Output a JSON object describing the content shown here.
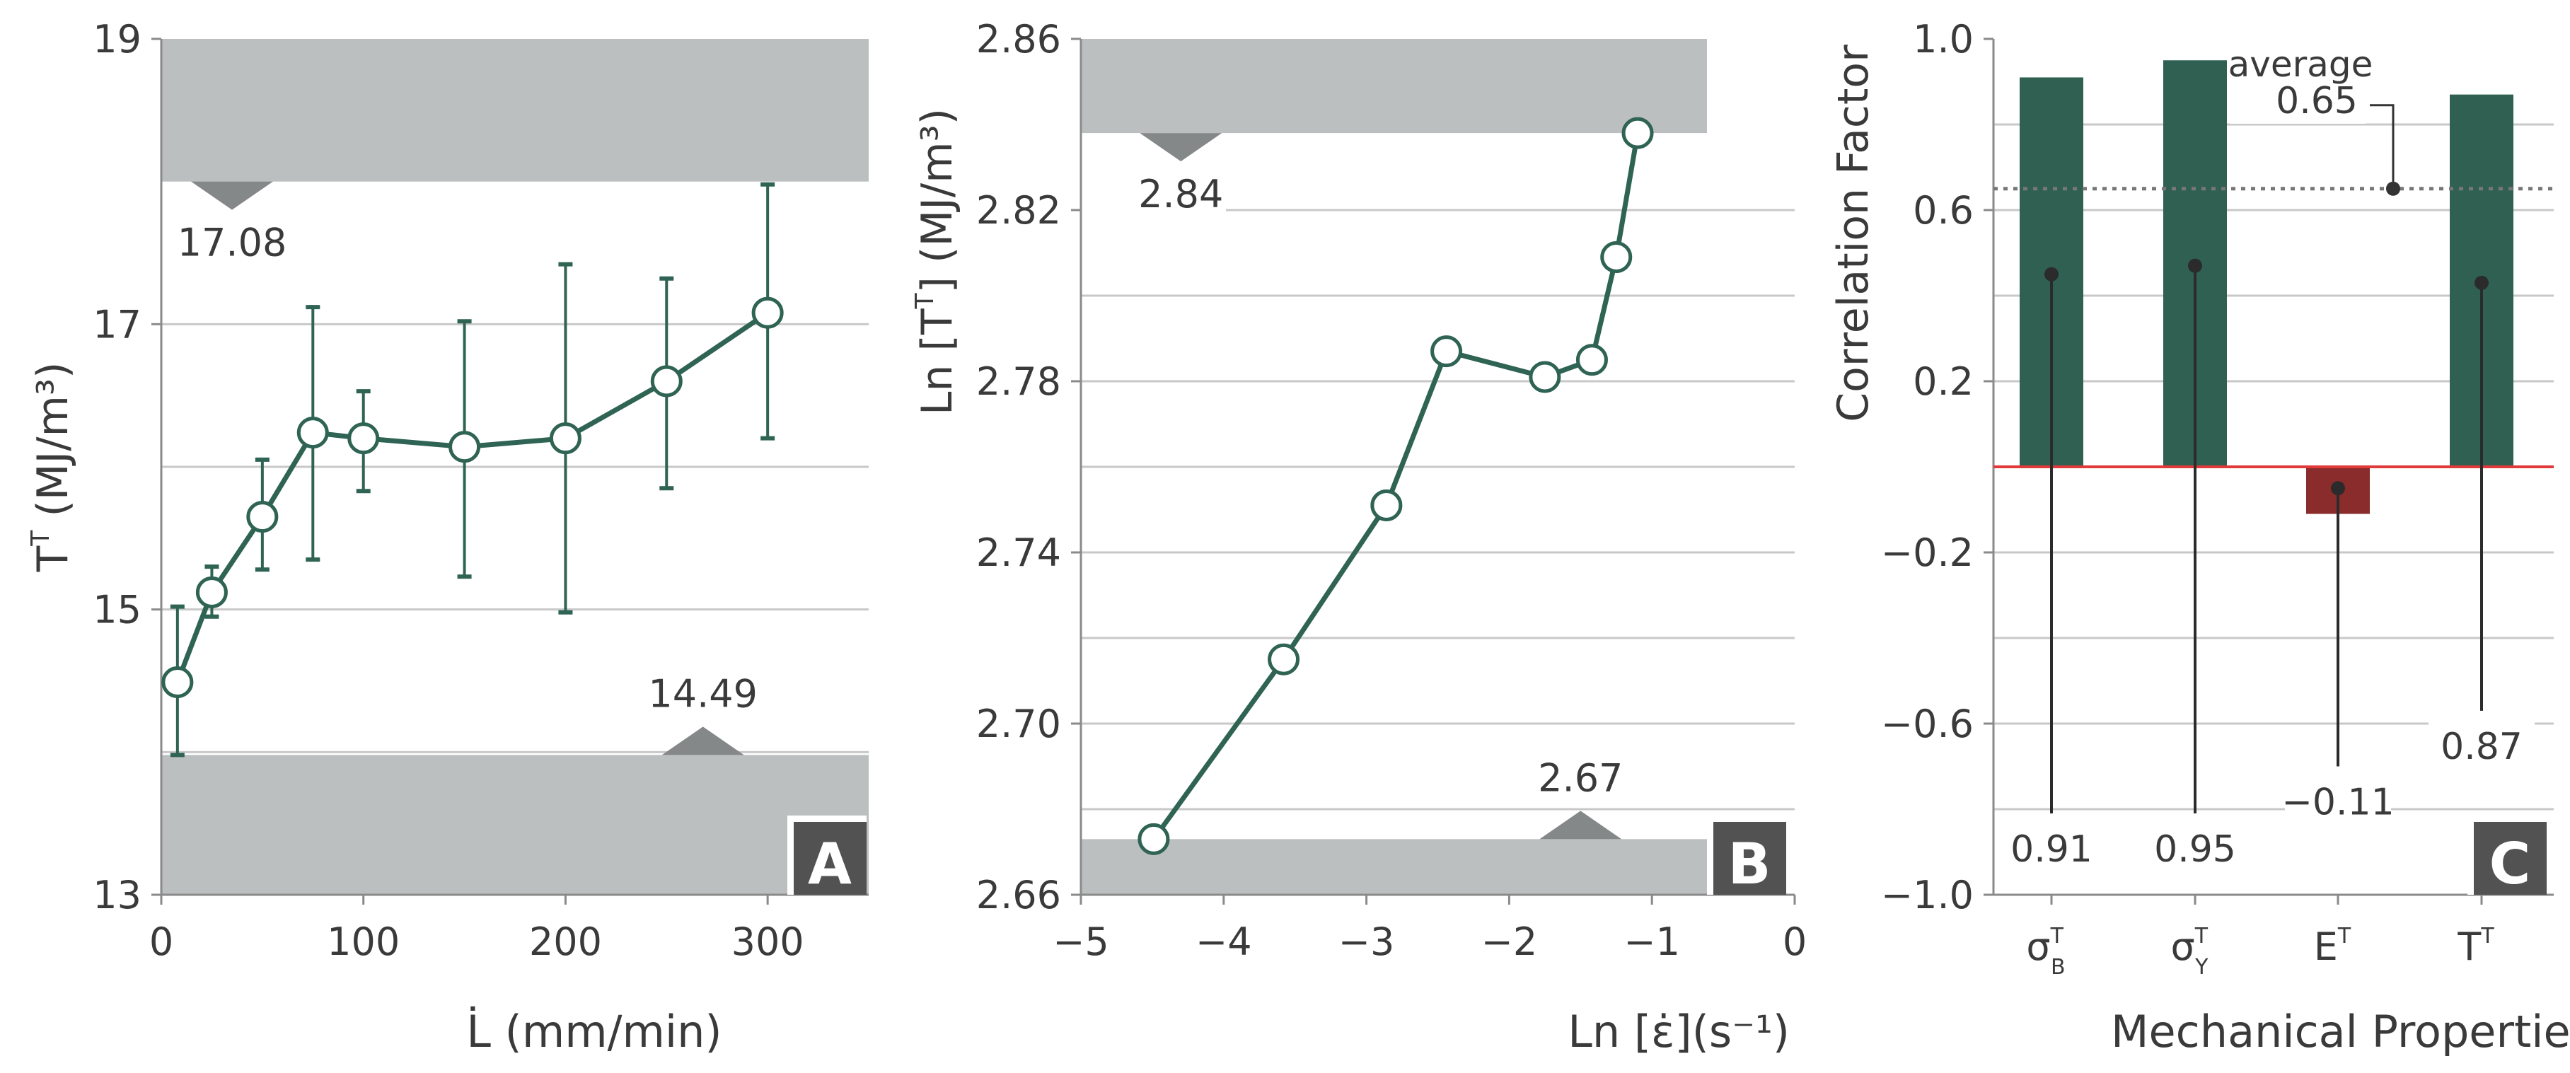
{
  "chart_data": [
    {
      "panel": "A",
      "type": "line",
      "xlabel": "L̇ (mm/min)",
      "ylabel": "T",
      "ylabel_sup": "T",
      "ylabel_unit": " (MJ/m³)",
      "xlim": [
        0,
        350
      ],
      "ylim": [
        13,
        19
      ],
      "xticks": [
        0,
        100,
        200,
        300
      ],
      "yticks": [
        13,
        15,
        17,
        19
      ],
      "grid": true,
      "x": [
        8,
        25,
        50,
        75,
        100,
        150,
        200,
        250,
        300
      ],
      "y": [
        14.49,
        15.12,
        15.65,
        16.24,
        16.2,
        16.14,
        16.2,
        16.6,
        17.08
      ],
      "yerr_upper": [
        15.02,
        15.3,
        16.05,
        17.12,
        16.53,
        17.02,
        17.42,
        17.32,
        17.98
      ],
      "yerr_lower": [
        13.98,
        14.95,
        15.28,
        15.35,
        15.83,
        15.23,
        14.98,
        15.85,
        16.2
      ],
      "upper_band": {
        "from": 18.0,
        "to": 19,
        "label": "17.08",
        "marker_x": 35
      },
      "lower_band": {
        "from": 13,
        "to": 13.98,
        "label": "14.49",
        "marker_x": 268
      },
      "panel_label": "A"
    },
    {
      "panel": "B",
      "type": "line",
      "xlabel": "Ln [ε̇](s⁻¹)",
      "ylabel": "Ln [T",
      "ylabel_sup": "T",
      "ylabel_unit": "] (MJ/m³)",
      "xlim": [
        -5,
        0
      ],
      "ylim": [
        2.66,
        2.86
      ],
      "xticks": [
        -5,
        -4,
        -3,
        -2,
        -1,
        0
      ],
      "xtick_labels": [
        "−5",
        "−4",
        "−3",
        "−2",
        "−1",
        "0"
      ],
      "yticks": [
        2.66,
        2.7,
        2.74,
        2.78,
        2.82,
        2.86
      ],
      "ytick_labels": [
        "2.66",
        "2.70",
        "2.74",
        "2.78",
        "2.82",
        "2.86"
      ],
      "grid": true,
      "x": [
        -4.49,
        -3.58,
        -2.86,
        -2.44,
        -1.75,
        -1.42,
        -1.25,
        -1.1
      ],
      "y": [
        2.673,
        2.715,
        2.751,
        2.787,
        2.781,
        2.785,
        2.809,
        2.838
      ],
      "upper_band": {
        "from": 2.838,
        "to": 2.86,
        "label": "2.84",
        "marker_x": -4.3
      },
      "lower_band": {
        "from": 2.66,
        "to": 2.673,
        "label": "2.67",
        "marker_x": -1.5
      },
      "panel_label": "B"
    },
    {
      "panel": "C",
      "type": "bar",
      "xlabel": "Mechanical Properties",
      "ylabel": "Correlation Factor",
      "ylim": [
        -1.0,
        1.0
      ],
      "yticks": [
        -1.0,
        -0.6,
        -0.2,
        0.2,
        0.6,
        1.0
      ],
      "ytick_labels": [
        "−1.0",
        "−0.6",
        "−0.2",
        "0.2",
        "0.6",
        "1.0"
      ],
      "grid": true,
      "categories": [
        {
          "base": "σ",
          "sup": "T",
          "sub": "B"
        },
        {
          "base": "σ",
          "sup": "T",
          "sub": "Y"
        },
        {
          "base": "E",
          "sup": "T",
          "sub": ""
        },
        {
          "base": "T",
          "sup": "T",
          "sub": ""
        }
      ],
      "values": [
        0.91,
        0.95,
        -0.11,
        0.87
      ],
      "value_labels": [
        "0.91",
        "0.95",
        "−0.11",
        "0.87"
      ],
      "average": {
        "value": 0.65,
        "label": "average",
        "value_label": "0.65"
      },
      "colors": {
        "positive": "#2f6051",
        "negative": "#8b2c2c",
        "zero_line": "#e03a3a"
      },
      "panel_label": "C"
    }
  ],
  "colors": {
    "series": "#2f6353",
    "band": "#bcbfbf",
    "marker": "#858888",
    "grid": "#c8c8c8",
    "panel_badge": "#525252"
  }
}
